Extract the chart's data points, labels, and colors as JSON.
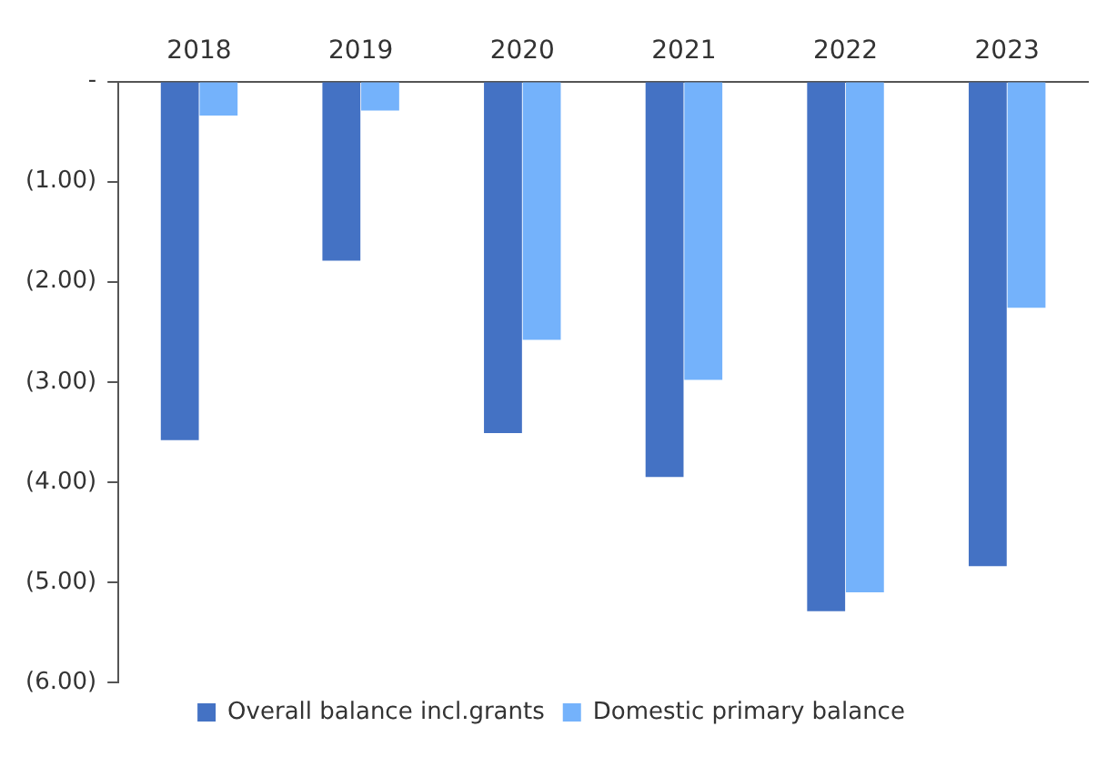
{
  "chart_data": {
    "type": "bar",
    "categories": [
      "2018",
      "2019",
      "2020",
      "2021",
      "2022",
      "2023"
    ],
    "series": [
      {
        "name": "Overall balance incl.grants",
        "color": "#4472c4",
        "values": [
          -3.58,
          -1.79,
          -3.51,
          -3.95,
          -5.29,
          -4.84
        ]
      },
      {
        "name": "Domestic primary balance",
        "color": "#74b2fb",
        "values": [
          -0.34,
          -0.29,
          -2.58,
          -2.98,
          -5.1,
          -2.26
        ]
      }
    ],
    "ylim": [
      -6,
      0
    ],
    "yticks": [
      {
        "value": 0,
        "label": "-"
      },
      {
        "value": -1,
        "label": "(1.00)"
      },
      {
        "value": -2,
        "label": "(2.00)"
      },
      {
        "value": -3,
        "label": "(3.00)"
      },
      {
        "value": -4,
        "label": "(4.00)"
      },
      {
        "value": -5,
        "label": "(5.00)"
      },
      {
        "value": -6,
        "label": "(6.00)"
      }
    ],
    "grid": false,
    "legend": "bottom"
  }
}
